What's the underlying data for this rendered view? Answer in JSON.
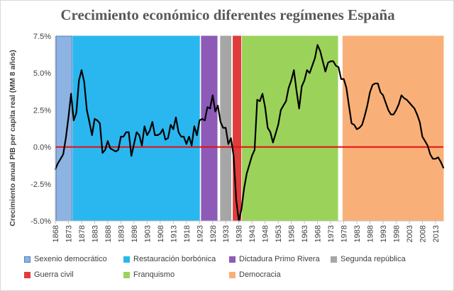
{
  "chart_data": {
    "type": "line",
    "title": "Crecimiento económico diferentes regímenes España",
    "ylabel": "Crecimiento anual PIB per capita real (MM 8 años)",
    "xlabel": "",
    "xlim": [
      1868,
      2016
    ],
    "ylim": [
      -5.0,
      7.5
    ],
    "y_ticks": [
      "7.5%",
      "5.0%",
      "2.5%",
      "0.0%",
      "-2.5%",
      "-5.0%"
    ],
    "y_tick_values": [
      7.5,
      5.0,
      2.5,
      0.0,
      -2.5,
      -5.0
    ],
    "x_ticks": [
      "1868",
      "1873",
      "1878",
      "1883",
      "1888",
      "1893",
      "1898",
      "1903",
      "1908",
      "1913",
      "1918",
      "1923",
      "1928",
      "1933",
      "1938",
      "1943",
      "1948",
      "1953",
      "1958",
      "1963",
      "1968",
      "1973",
      "1978",
      "1983",
      "1988",
      "1993",
      "1998",
      "2003",
      "2008",
      "2013"
    ],
    "x_tick_values": [
      1868,
      1873,
      1878,
      1883,
      1888,
      1893,
      1898,
      1903,
      1908,
      1913,
      1918,
      1923,
      1928,
      1933,
      1938,
      1943,
      1948,
      1953,
      1958,
      1963,
      1968,
      1973,
      1978,
      1983,
      1988,
      1993,
      1998,
      2003,
      2008,
      2013
    ],
    "grid": false,
    "legend_position": "bottom",
    "zero_line_color": "#e01010",
    "regimes": [
      {
        "name": "Sexenio democrático",
        "start": 1868.3,
        "end": 1874.3,
        "color": "#8db3e2",
        "border": "#4f81bd"
      },
      {
        "name": "Restauración borbónica",
        "start": 1874.7,
        "end": 1923.0,
        "color": "#2ab7ef",
        "border": "#2ab7ef"
      },
      {
        "name": "Dictadura Primo Rivera",
        "start": 1923.7,
        "end": 1929.7,
        "color": "#8e5ab8",
        "border": "#8e5ab8"
      },
      {
        "name": "Segunda república",
        "start": 1931.0,
        "end": 1935.0,
        "color": "#a6a6a6",
        "border": "#a6a6a6"
      },
      {
        "name": "Guerra civil",
        "start": 1935.8,
        "end": 1938.8,
        "color": "#e03c3c",
        "border": "#e03c3c"
      },
      {
        "name": "Franquismo",
        "start": 1939.3,
        "end": 1975.7,
        "color": "#9bd35a",
        "border": "#9bd35a"
      },
      {
        "name": "Democracia",
        "start": 1977.7,
        "end": 2016.0,
        "color": "#f9b078",
        "border": "#f9b078"
      }
    ],
    "series": [
      {
        "values": [
          [
            1868,
            -1.5
          ],
          [
            1869,
            -1.1
          ],
          [
            1870,
            -0.8
          ],
          [
            1871,
            -0.5
          ],
          [
            1872,
            0.6
          ],
          [
            1873,
            2.0
          ],
          [
            1874,
            3.6
          ],
          [
            1875,
            1.8
          ],
          [
            1876,
            2.3
          ],
          [
            1877,
            4.5
          ],
          [
            1878,
            5.2
          ],
          [
            1879,
            4.4
          ],
          [
            1880,
            2.5
          ],
          [
            1881,
            1.7
          ],
          [
            1882,
            0.8
          ],
          [
            1883,
            1.9
          ],
          [
            1884,
            1.8
          ],
          [
            1885,
            1.6
          ],
          [
            1886,
            -0.4
          ],
          [
            1887,
            -0.2
          ],
          [
            1888,
            0.4
          ],
          [
            1889,
            -0.1
          ],
          [
            1890,
            -0.2
          ],
          [
            1891,
            -0.3
          ],
          [
            1892,
            -0.2
          ],
          [
            1893,
            0.7
          ],
          [
            1894,
            0.7
          ],
          [
            1895,
            1.0
          ],
          [
            1896,
            1.0
          ],
          [
            1897,
            -0.6
          ],
          [
            1898,
            0.2
          ],
          [
            1899,
            1.0
          ],
          [
            1900,
            0.8
          ],
          [
            1901,
            0.1
          ],
          [
            1902,
            1.4
          ],
          [
            1903,
            0.8
          ],
          [
            1904,
            1.1
          ],
          [
            1905,
            1.7
          ],
          [
            1906,
            0.8
          ],
          [
            1907,
            0.8
          ],
          [
            1908,
            0.9
          ],
          [
            1909,
            1.2
          ],
          [
            1910,
            0.5
          ],
          [
            1911,
            0.6
          ],
          [
            1912,
            1.5
          ],
          [
            1913,
            1.2
          ],
          [
            1914,
            2.0
          ],
          [
            1915,
            1.0
          ],
          [
            1916,
            0.7
          ],
          [
            1917,
            0.7
          ],
          [
            1918,
            0.2
          ],
          [
            1919,
            0.7
          ],
          [
            1920,
            0.1
          ],
          [
            1921,
            1.4
          ],
          [
            1922,
            0.8
          ],
          [
            1923,
            1.8
          ],
          [
            1924,
            1.9
          ],
          [
            1925,
            1.8
          ],
          [
            1926,
            2.7
          ],
          [
            1927,
            2.6
          ],
          [
            1928,
            3.5
          ],
          [
            1929,
            2.4
          ],
          [
            1930,
            2.8
          ],
          [
            1931,
            1.7
          ],
          [
            1932,
            1.3
          ],
          [
            1933,
            1.3
          ],
          [
            1934,
            0.2
          ],
          [
            1935,
            0.6
          ],
          [
            1936,
            -0.6
          ],
          [
            1937,
            -3.6
          ],
          [
            1938,
            -5.0
          ],
          [
            1939,
            -4.2
          ],
          [
            1940,
            -2.8
          ],
          [
            1941,
            -1.8
          ],
          [
            1942,
            -1.2
          ],
          [
            1943,
            -0.6
          ],
          [
            1944,
            -0.2
          ],
          [
            1945,
            3.2
          ],
          [
            1946,
            3.1
          ],
          [
            1947,
            3.6
          ],
          [
            1948,
            2.7
          ],
          [
            1949,
            1.3
          ],
          [
            1950,
            1.0
          ],
          [
            1951,
            0.3
          ],
          [
            1952,
            0.9
          ],
          [
            1953,
            1.5
          ],
          [
            1954,
            2.5
          ],
          [
            1955,
            2.8
          ],
          [
            1956,
            3.1
          ],
          [
            1957,
            4.0
          ],
          [
            1958,
            4.5
          ],
          [
            1959,
            5.2
          ],
          [
            1960,
            3.8
          ],
          [
            1961,
            2.6
          ],
          [
            1962,
            4.1
          ],
          [
            1963,
            4.5
          ],
          [
            1964,
            5.2
          ],
          [
            1965,
            5.0
          ],
          [
            1966,
            5.5
          ],
          [
            1967,
            6.0
          ],
          [
            1968,
            6.9
          ],
          [
            1969,
            6.5
          ],
          [
            1970,
            5.8
          ],
          [
            1971,
            5.1
          ],
          [
            1972,
            5.7
          ],
          [
            1973,
            5.8
          ],
          [
            1974,
            5.8
          ],
          [
            1975,
            5.5
          ],
          [
            1976,
            5.4
          ],
          [
            1977,
            4.6
          ],
          [
            1978,
            4.6
          ],
          [
            1979,
            4.0
          ],
          [
            1980,
            2.8
          ],
          [
            1981,
            1.6
          ],
          [
            1982,
            1.5
          ],
          [
            1983,
            1.2
          ],
          [
            1984,
            1.3
          ],
          [
            1985,
            1.5
          ],
          [
            1986,
            2.1
          ],
          [
            1987,
            2.8
          ],
          [
            1988,
            3.7
          ],
          [
            1989,
            4.2
          ],
          [
            1990,
            4.3
          ],
          [
            1991,
            4.3
          ],
          [
            1992,
            3.7
          ],
          [
            1993,
            3.5
          ],
          [
            1994,
            3.0
          ],
          [
            1995,
            2.5
          ],
          [
            1996,
            2.2
          ],
          [
            1997,
            2.2
          ],
          [
            1998,
            2.5
          ],
          [
            1999,
            2.9
          ],
          [
            2000,
            3.5
          ],
          [
            2001,
            3.3
          ],
          [
            2002,
            3.2
          ],
          [
            2003,
            3.0
          ],
          [
            2004,
            2.8
          ],
          [
            2005,
            2.6
          ],
          [
            2006,
            2.2
          ],
          [
            2007,
            1.7
          ],
          [
            2008,
            0.7
          ],
          [
            2009,
            0.4
          ],
          [
            2010,
            0.1
          ],
          [
            2011,
            -0.5
          ],
          [
            2012,
            -0.8
          ],
          [
            2013,
            -0.8
          ],
          [
            2014,
            -0.7
          ],
          [
            2015,
            -1.0
          ],
          [
            2016,
            -1.4
          ]
        ]
      }
    ]
  }
}
